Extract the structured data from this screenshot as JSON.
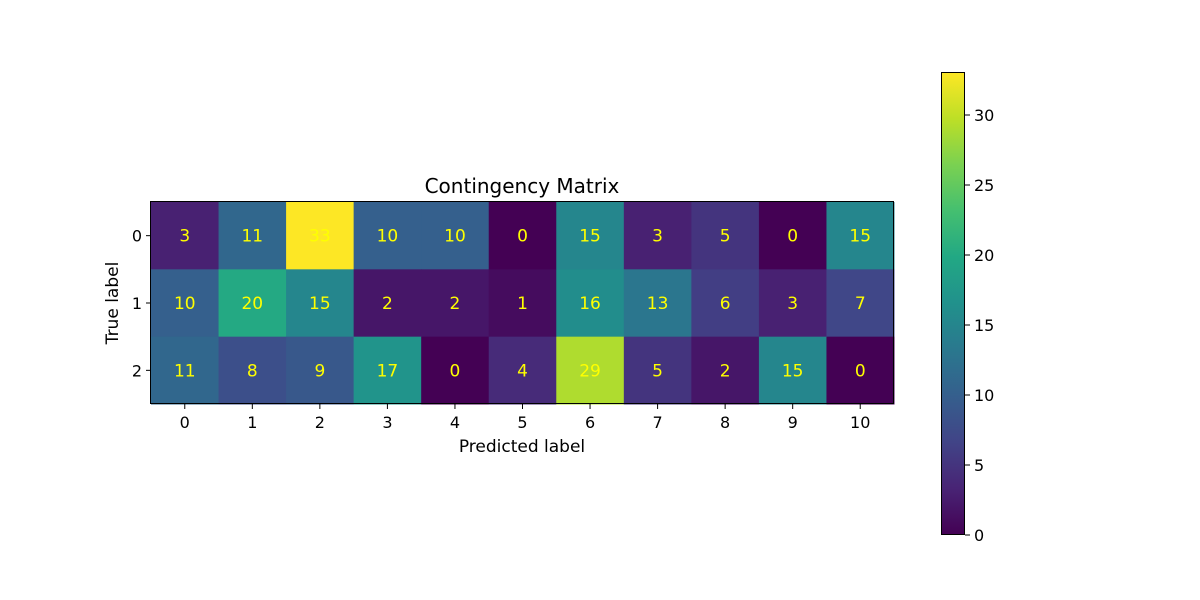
{
  "chart_data": {
    "type": "heatmap",
    "title": "Contingency Matrix",
    "xlabel": "Predicted label",
    "ylabel": "True label",
    "x_categories": [
      "0",
      "1",
      "2",
      "3",
      "4",
      "5",
      "6",
      "7",
      "8",
      "9",
      "10"
    ],
    "y_categories": [
      "0",
      "1",
      "2"
    ],
    "values": [
      [
        3,
        11,
        33,
        10,
        10,
        0,
        15,
        3,
        5,
        0,
        15
      ],
      [
        10,
        20,
        15,
        2,
        2,
        1,
        16,
        13,
        6,
        3,
        7
      ],
      [
        11,
        8,
        9,
        17,
        0,
        4,
        29,
        5,
        2,
        15,
        0
      ]
    ],
    "colormap": "viridis",
    "value_range": [
      0,
      33
    ],
    "cell_text_color": "#ffff00",
    "colorbar": {
      "ticks": [
        "0",
        "5",
        "10",
        "15",
        "20",
        "25",
        "30"
      ]
    }
  }
}
